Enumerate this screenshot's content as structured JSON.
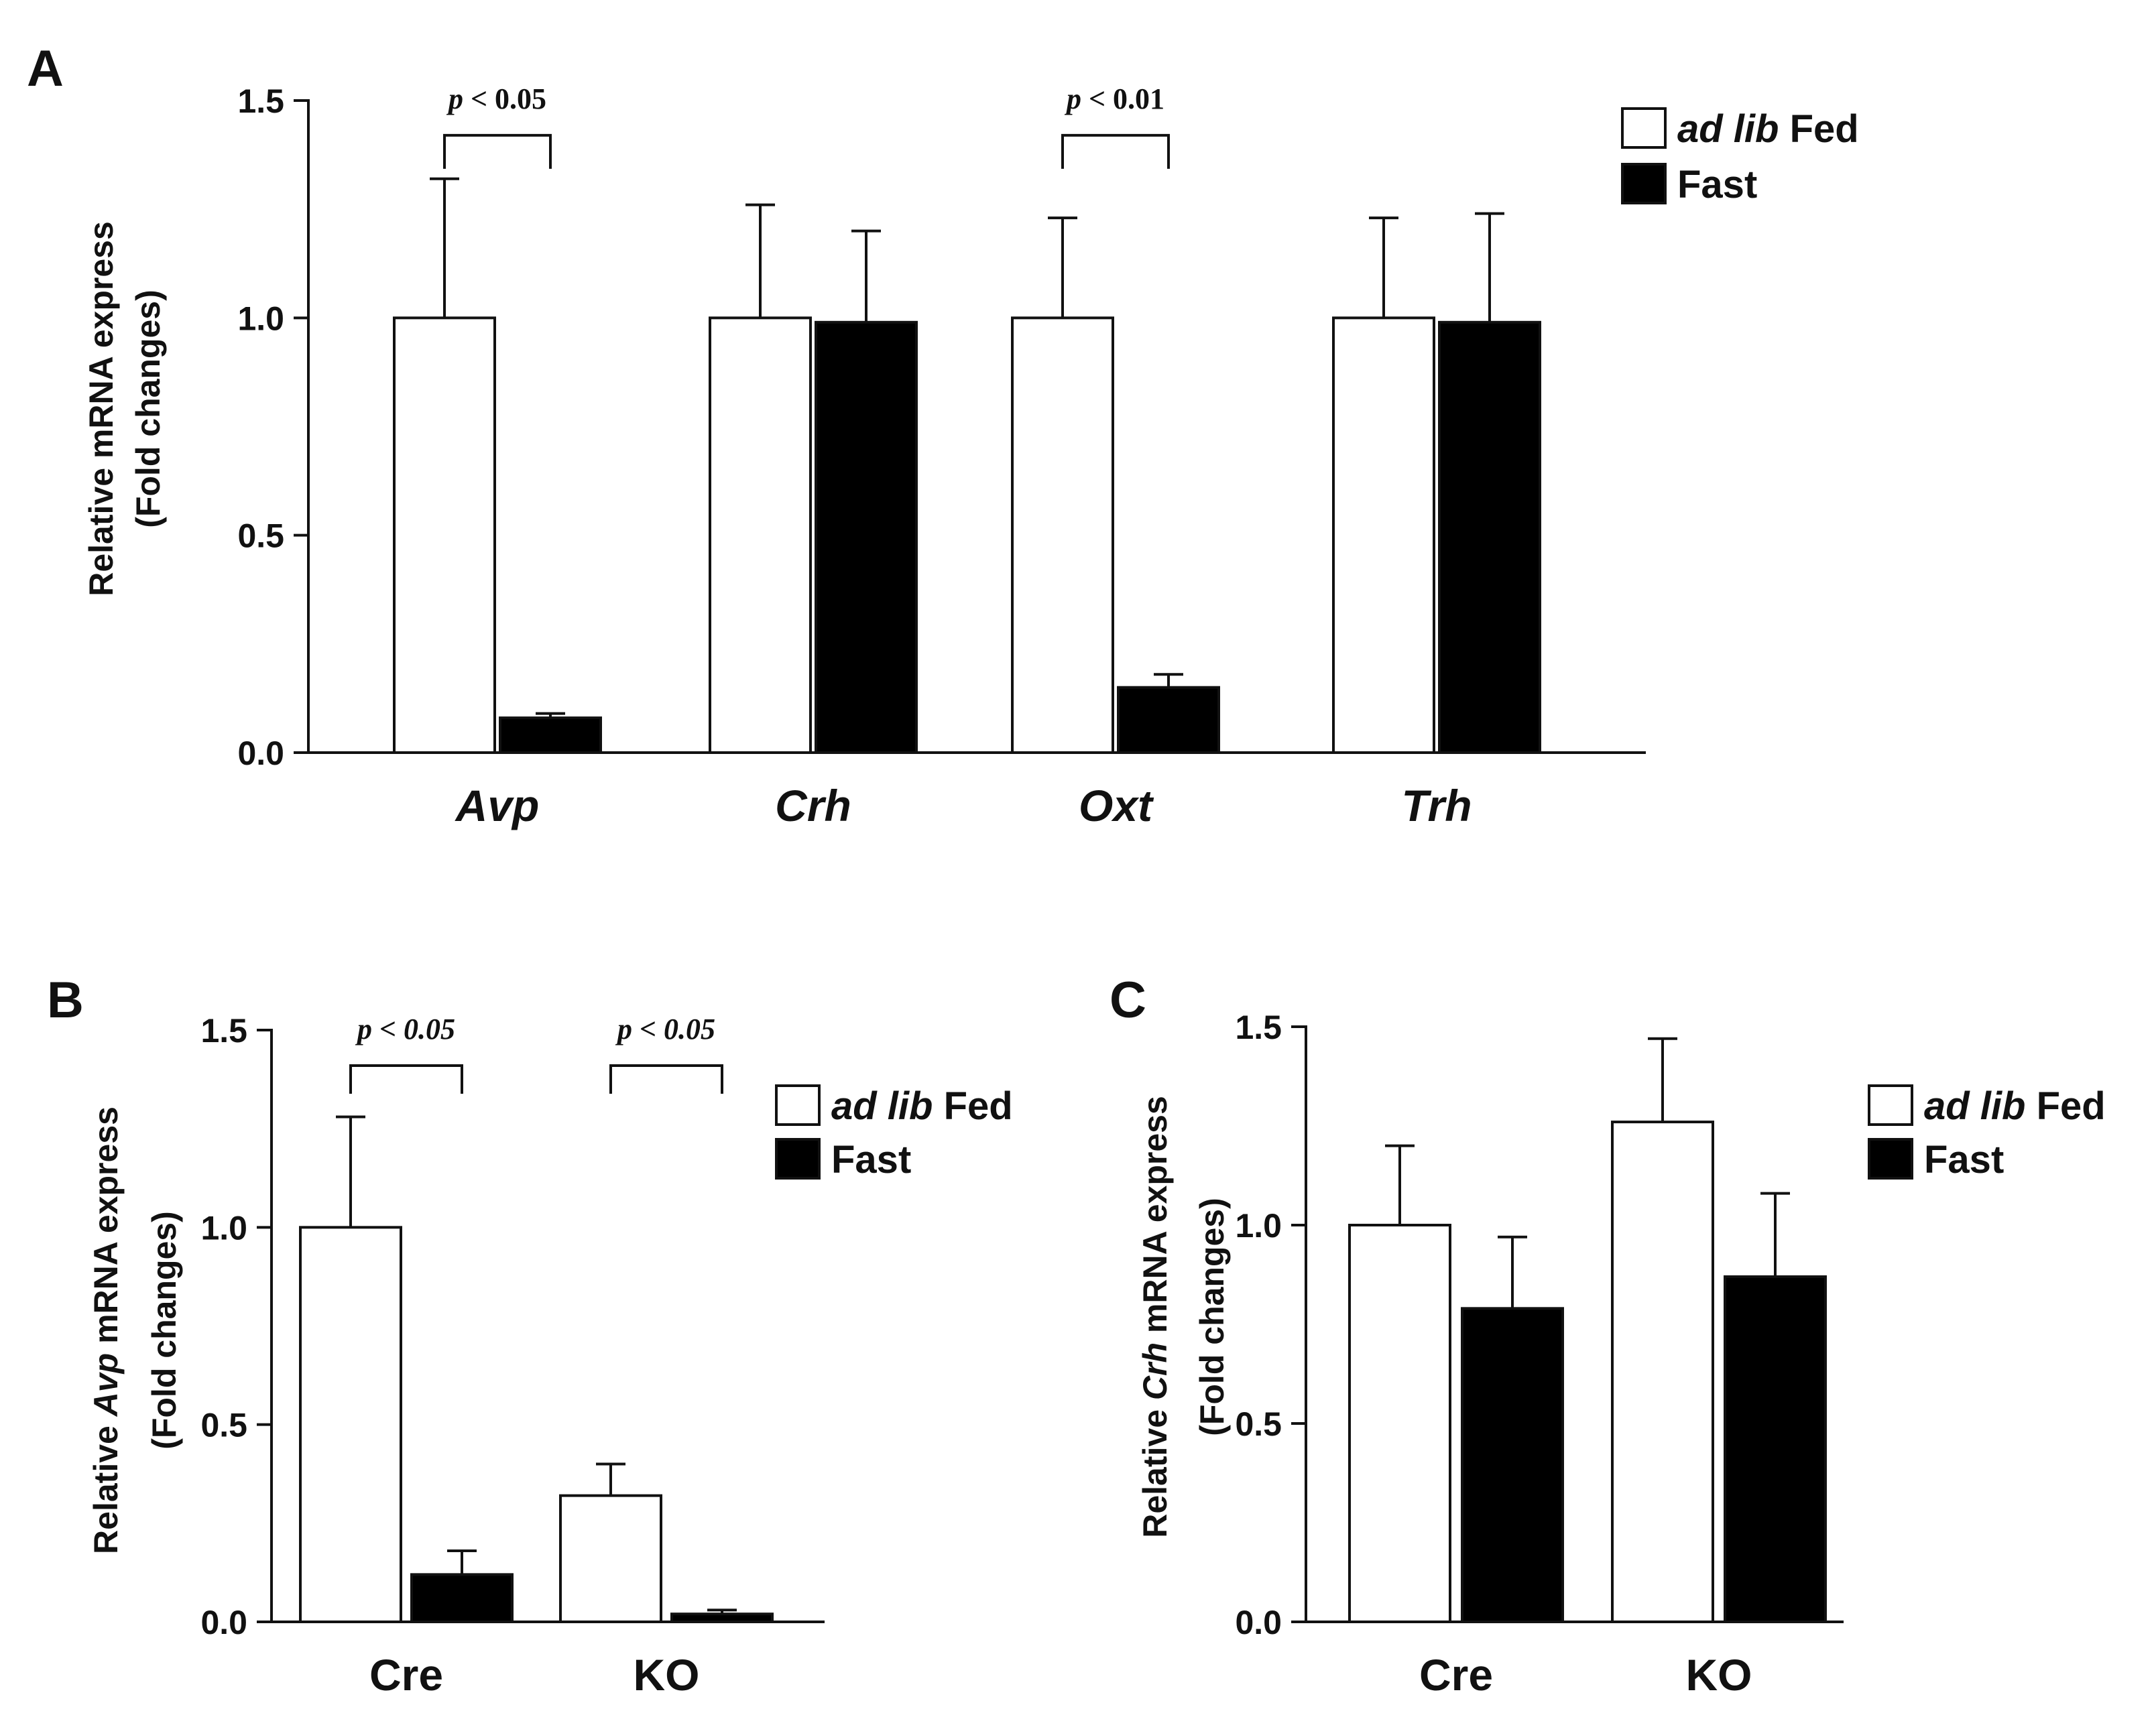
{
  "chart_data": [
    {
      "panel": "A",
      "type": "bar",
      "ylabel_line1": "Relative mRNA express",
      "ylabel_line2": "(Fold changes)",
      "ylim": [
        0,
        1.5
      ],
      "yticks": [
        "0.0",
        "0.5",
        "1.0",
        "1.5"
      ],
      "categories": [
        "Avp",
        "Crh",
        "Oxt",
        "Trh"
      ],
      "categories_italic": true,
      "series": [
        {
          "name": "ad lib Fed",
          "name_italic": "ad lib",
          "name_rest": " Fed",
          "fill": "#ffffff",
          "values": [
            1.0,
            1.0,
            1.0,
            1.0
          ],
          "errors": [
            0.32,
            0.26,
            0.23,
            0.23
          ]
        },
        {
          "name": "Fast",
          "fill": "#000000",
          "values": [
            0.08,
            0.99,
            0.15,
            0.99
          ],
          "errors": [
            0.01,
            0.21,
            0.03,
            0.25
          ]
        }
      ],
      "annotations": [
        {
          "text": "p < 0.05",
          "category": 0,
          "height": 1.42
        },
        {
          "text": "p < 0.01",
          "category": 2,
          "height": 1.42
        }
      ]
    },
    {
      "panel": "B",
      "type": "bar",
      "ylabel_pre": "Relative ",
      "ylabel_italic": "Avp",
      "ylabel_post": " mRNA express",
      "ylabel_line2": "(Fold changes)",
      "ylim": [
        0,
        1.5
      ],
      "yticks": [
        "0.0",
        "0.5",
        "1.0",
        "1.5"
      ],
      "categories": [
        "Cre",
        "KO"
      ],
      "categories_italic": false,
      "series": [
        {
          "name": "ad lib Fed",
          "name_italic": "ad lib",
          "name_rest": " Fed",
          "fill": "#ffffff",
          "values": [
            1.0,
            0.32
          ],
          "errors": [
            0.28,
            0.08
          ]
        },
        {
          "name": "Fast",
          "fill": "#000000",
          "values": [
            0.12,
            0.02
          ],
          "errors": [
            0.06,
            0.01
          ]
        }
      ],
      "annotations": [
        {
          "text": "p < 0.05",
          "category": 0,
          "height": 1.41
        },
        {
          "text": "p < 0.05",
          "category": 1,
          "height": 1.41
        }
      ]
    },
    {
      "panel": "C",
      "type": "bar",
      "ylabel_pre": "Relative ",
      "ylabel_italic": "Crh",
      "ylabel_post": " mRNA express",
      "ylabel_line2": "(Fold changes)",
      "ylim": [
        0,
        1.5
      ],
      "yticks": [
        "0.0",
        "0.5",
        "1.0",
        "1.5"
      ],
      "categories": [
        "Cre",
        "KO"
      ],
      "categories_italic": false,
      "series": [
        {
          "name": "ad lib Fed",
          "name_italic": "ad lib",
          "name_rest": " Fed",
          "fill": "#ffffff",
          "values": [
            1.0,
            1.26
          ],
          "errors": [
            0.2,
            0.21
          ]
        },
        {
          "name": "Fast",
          "fill": "#000000",
          "values": [
            0.79,
            0.87
          ],
          "errors": [
            0.18,
            0.21
          ]
        }
      ],
      "annotations": []
    }
  ]
}
